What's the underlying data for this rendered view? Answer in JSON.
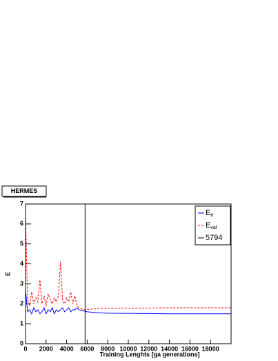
{
  "chart_data": {
    "type": "line",
    "title": "HERMES",
    "xlabel": "Training Lenghts [ga generations]",
    "ylabel": "E",
    "x": [
      0,
      200,
      400,
      600,
      800,
      1000,
      1200,
      1400,
      1600,
      1800,
      2000,
      2200,
      2400,
      2600,
      2800,
      3000,
      3200,
      3400,
      3600,
      3800,
      4000,
      4200,
      4400,
      4600,
      4800,
      5000,
      5200,
      5600,
      6000,
      7000,
      8000,
      10000,
      12000,
      14000,
      16000,
      18000,
      20000
    ],
    "series": [
      {
        "name": "E",
        "name_sub": "tr",
        "color": "#0000ff",
        "dash": false,
        "values": [
          2.7,
          1.6,
          1.7,
          1.5,
          1.8,
          1.6,
          1.7,
          1.5,
          1.6,
          1.8,
          1.5,
          1.7,
          1.6,
          1.8,
          1.5,
          1.7,
          1.6,
          1.7,
          1.8,
          1.6,
          1.7,
          1.8,
          1.6,
          1.7,
          1.7,
          1.8,
          1.7,
          1.65,
          1.6,
          1.55,
          1.53,
          1.52,
          1.51,
          1.5,
          1.5,
          1.5,
          1.5
        ]
      },
      {
        "name": "E",
        "name_sub": "val",
        "color": "#ff0000",
        "dash": true,
        "values": [
          6.5,
          2.2,
          1.9,
          2.6,
          2.0,
          2.3,
          2.1,
          3.2,
          2.0,
          2.4,
          1.9,
          2.5,
          2.2,
          2.0,
          2.3,
          2.1,
          2.4,
          4.1,
          2.2,
          2.0,
          2.3,
          2.1,
          2.6,
          2.0,
          2.4,
          1.9,
          1.8,
          1.7,
          1.72,
          1.75,
          1.77,
          1.78,
          1.79,
          1.8,
          1.8,
          1.8,
          1.8
        ]
      }
    ],
    "vline": {
      "name": "5794",
      "x": 5794,
      "color": "#000000"
    },
    "xlim": [
      0,
      20000
    ],
    "xticks": [
      0,
      2000,
      4000,
      6000,
      8000,
      10000,
      12000,
      14000,
      16000,
      18000
    ],
    "ylim": [
      0,
      7
    ],
    "yticks": [
      0,
      1,
      2,
      3,
      4,
      5,
      6,
      7
    ]
  }
}
